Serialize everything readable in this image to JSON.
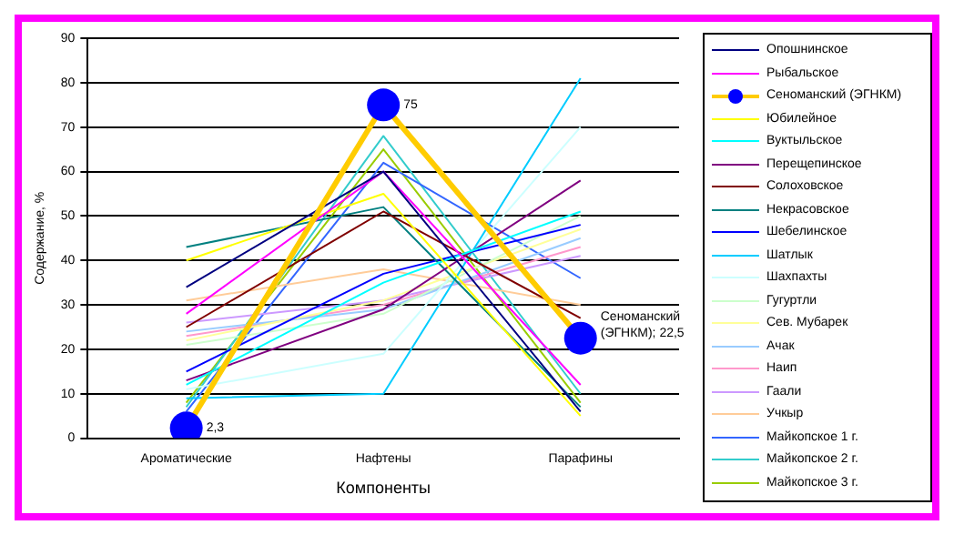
{
  "chart_data": {
    "type": "line",
    "xlabel": "Компоненты",
    "ylabel": "Содержание, %",
    "categories": [
      "Ароматические",
      "Нафтены",
      "Парафины"
    ],
    "ylim": [
      0,
      90
    ],
    "yticks": [
      0,
      10,
      20,
      30,
      40,
      50,
      60,
      70,
      80,
      90
    ],
    "grid": "y",
    "legend": "right",
    "marker": "none",
    "series": [
      {
        "name": "Опошнинское",
        "color": "#000080",
        "values": [
          34,
          60,
          6
        ]
      },
      {
        "name": "Рыбальское",
        "color": "#ff00ff",
        "values": [
          28,
          60,
          12
        ]
      },
      {
        "name": "Сеноманский (ЭГНКМ)",
        "color": "#ffcc00",
        "values": [
          2.3,
          75,
          22.5
        ],
        "marker": "circle"
      },
      {
        "name": "Юбилейное",
        "color": "#ffff00",
        "values": [
          40,
          55,
          5
        ]
      },
      {
        "name": "Вуктыльское",
        "color": "#00ffff",
        "values": [
          12,
          35,
          51
        ]
      },
      {
        "name": "Перещепинское",
        "color": "#800080",
        "values": [
          13,
          29,
          58
        ]
      },
      {
        "name": "Солоховское",
        "color": "#800000",
        "values": [
          25,
          51,
          27
        ]
      },
      {
        "name": "Некрасовское",
        "color": "#008080",
        "values": [
          43,
          52,
          7
        ]
      },
      {
        "name": "Шебелинское",
        "color": "#0000ff",
        "values": [
          15,
          37,
          48
        ]
      },
      {
        "name": "Шатлык",
        "color": "#00ccff",
        "values": [
          9,
          10,
          81
        ]
      },
      {
        "name": "Шахпахты",
        "color": "#ccffff",
        "values": [
          11,
          19,
          70
        ]
      },
      {
        "name": "Гугуртли",
        "color": "#ccffcc",
        "values": [
          21,
          28,
          50
        ]
      },
      {
        "name": "Сев. Мубарек",
        "color": "#ffff99",
        "values": [
          22,
          31,
          47
        ]
      },
      {
        "name": "Ачак",
        "color": "#99ccff",
        "values": [
          24,
          29,
          45
        ]
      },
      {
        "name": "Наип",
        "color": "#ff99cc",
        "values": [
          23,
          30,
          43
        ]
      },
      {
        "name": "Гаали",
        "color": "#cc99ff",
        "values": [
          26,
          31,
          41
        ]
      },
      {
        "name": "Учкыр",
        "color": "#ffcc99",
        "values": [
          31,
          38,
          30
        ]
      },
      {
        "name": "Майкопское 1 г.",
        "color": "#3366ff",
        "values": [
          6,
          62,
          36
        ]
      },
      {
        "name": "Майкопское 2 г.",
        "color": "#33cccc",
        "values": [
          7,
          68,
          10
        ]
      },
      {
        "name": "Майкопское 3 г.",
        "color": "#99cc00",
        "values": [
          8,
          65,
          8
        ]
      }
    ],
    "annotations": [
      {
        "text": "2,3",
        "x": "Ароматические",
        "y": 2.3
      },
      {
        "text": "75",
        "x": "Нафтены",
        "y": 75
      },
      {
        "text": "Сеноманский (ЭГНКМ); 22,5",
        "x": "Парафины",
        "y": 22.5
      }
    ]
  }
}
